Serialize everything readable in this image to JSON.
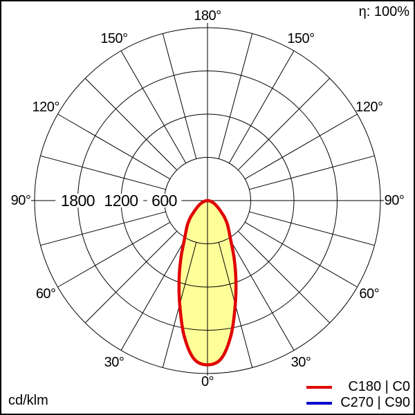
{
  "chart_data": {
    "type": "polar_photometric",
    "units_label": "cd/klm",
    "efficiency_label": "η: 100%",
    "grid_color": "#000000",
    "background_color": "#ffffff",
    "radial_axis": {
      "tick_values": [
        1800,
        1200,
        600
      ],
      "max": 2400,
      "grid_circles": [
        600,
        1200,
        1800,
        2400
      ]
    },
    "angle_axis": {
      "labeled_ticks_deg": [
        0,
        30,
        60,
        90,
        120,
        150,
        180
      ],
      "grid_step_deg": 15,
      "label_suffix": "°"
    },
    "series": [
      {
        "name": "C180 | C0",
        "color": "#e00000",
        "fill_color": "#ffff99",
        "angles_deg": [
          0,
          5,
          10,
          15,
          20,
          25,
          30,
          35,
          40,
          45,
          50,
          55,
          60,
          65,
          70,
          75,
          80,
          85,
          90
        ],
        "values_cd_klm": [
          2280,
          2200,
          1890,
          1490,
          1150,
          870,
          650,
          520,
          430,
          340,
          250,
          190,
          145,
          110,
          80,
          55,
          32,
          14,
          0
        ]
      },
      {
        "name": "C270 | C90",
        "color": "#0000cd",
        "fill_color": "#ffff99",
        "angles_deg": [
          0,
          5,
          10,
          15,
          20,
          25,
          30,
          35,
          40,
          45,
          50,
          55,
          60,
          65,
          70,
          75,
          80,
          85,
          90
        ],
        "values_cd_klm": [
          2280,
          2200,
          1890,
          1490,
          1150,
          870,
          650,
          520,
          430,
          340,
          250,
          190,
          145,
          110,
          80,
          55,
          32,
          14,
          0
        ]
      }
    ]
  }
}
